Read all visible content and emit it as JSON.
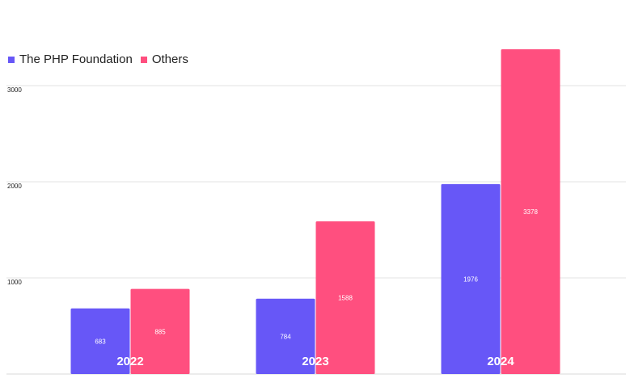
{
  "chart_data": {
    "type": "bar",
    "title": "",
    "xlabel": "",
    "ylabel": "",
    "categories": [
      "2022",
      "2023",
      "2024"
    ],
    "series": [
      {
        "name": "The PHP Foundation",
        "values": [
          683,
          784,
          1976
        ],
        "color": "#6757f7"
      },
      {
        "name": "Others",
        "values": [
          885,
          1588,
          3378
        ],
        "color": "#ff4f7f"
      }
    ],
    "ylim": [
      0,
      3000
    ],
    "yticks": [
      "1000",
      "2000",
      "3000"
    ],
    "grid": true,
    "legend": "top-left",
    "data_labels": true
  }
}
